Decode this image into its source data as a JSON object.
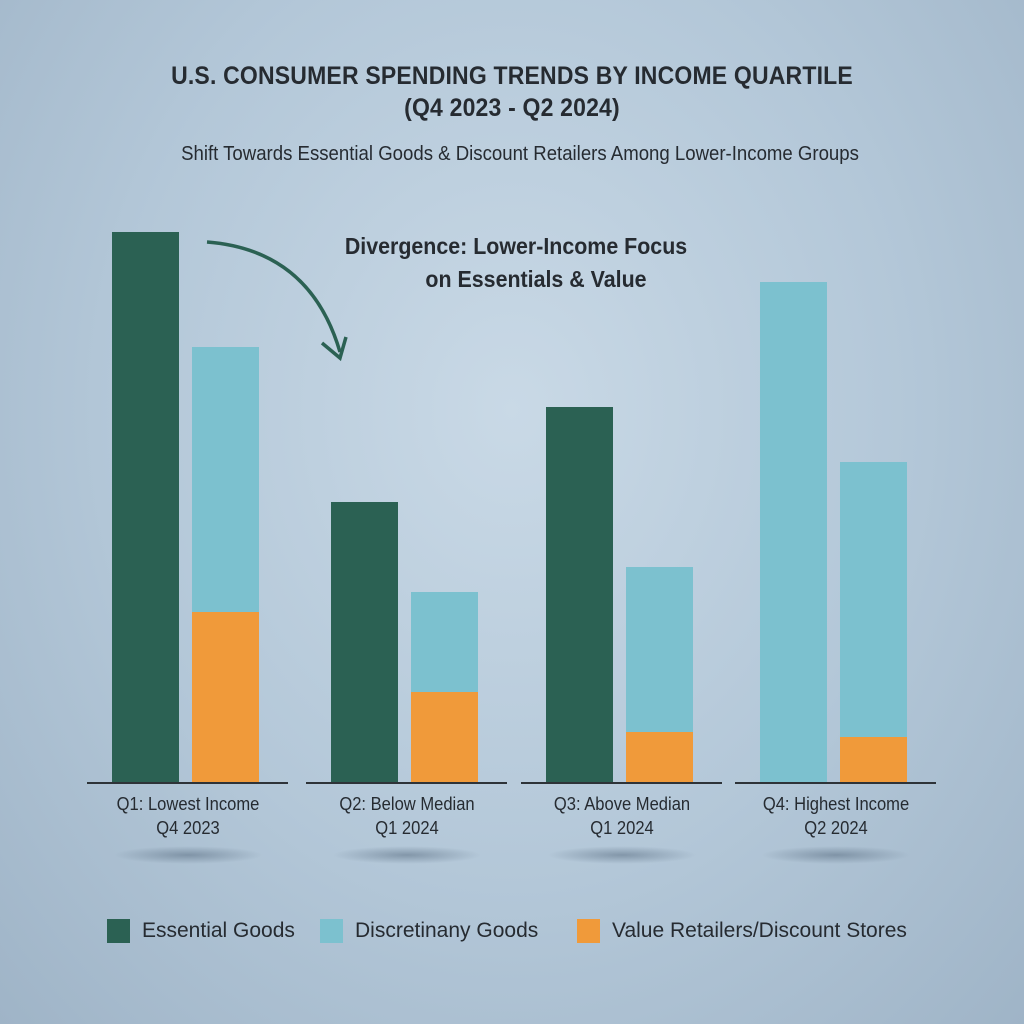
{
  "chart_data": {
    "type": "bar",
    "title": "U.S. CONSUMER SPENDING TRENDS BY INCOME QUARTILE",
    "title_line2": "(Q4 2023 - Q2 2024)",
    "subtitle": "Shift Towards Essential Goods & Discount Retailers Among Lower-Income Groups",
    "annotation_line1": "Divergence: Lower-Income Focus",
    "annotation_line2": "on Essentials & Value",
    "xlabel": "",
    "ylabel": "",
    "ylim": [
      0,
      110
    ],
    "grid": false,
    "legend_position": "bottom",
    "colors": {
      "Essential Goods": "#2b6153",
      "Discretinany Goods": "#7cc1cf",
      "Value Retailers/Discount Stores": "#f09a3a"
    },
    "legend": [
      "Essential Goods",
      "Discretinany Goods",
      "Value Retailers/Discount Stores"
    ],
    "categories": [
      {
        "line1": "Q1: Lowest Income",
        "line2": "Q4 2023",
        "bars": [
          [
            {
              "series": "Essential Goods",
              "value": 110
            }
          ],
          [
            {
              "series": "Value Retailers/Discount Stores",
              "value": 34
            },
            {
              "series": "Discretinany Goods",
              "value": 53
            }
          ]
        ]
      },
      {
        "line1": "Q2: Below Median",
        "line2": "Q1 2024",
        "bars": [
          [
            {
              "series": "Essential Goods",
              "value": 56
            }
          ],
          [
            {
              "series": "Value Retailers/Discount Stores",
              "value": 18
            },
            {
              "series": "Discretinany Goods",
              "value": 20
            }
          ]
        ]
      },
      {
        "line1": "Q3: Above Median",
        "line2": "Q1 2024",
        "bars": [
          [
            {
              "series": "Essential Goods",
              "value": 75
            }
          ],
          [
            {
              "series": "Value Retailers/Discount Stores",
              "value": 10
            },
            {
              "series": "Discretinany Goods",
              "value": 33
            }
          ]
        ]
      },
      {
        "line1": "Q4: Highest Income",
        "line2": "Q2 2024",
        "bars": [
          [
            {
              "series": "Discretinany Goods",
              "value": 100
            }
          ],
          [
            {
              "series": "Value Retailers/Discount Stores",
              "value": 9
            },
            {
              "series": "Discretinany Goods",
              "value": 55
            }
          ]
        ]
      }
    ]
  }
}
